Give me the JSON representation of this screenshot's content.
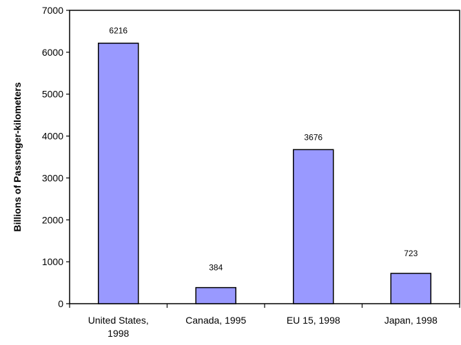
{
  "chart_data": {
    "type": "bar",
    "categories": [
      [
        "United States,",
        "1998"
      ],
      [
        "Canada, 1995"
      ],
      [
        "EU 15, 1998"
      ],
      [
        "Japan, 1998"
      ]
    ],
    "values": [
      6216,
      384,
      3676,
      723
    ],
    "ylabel": "Billions of Passenger-kilometers",
    "ylim": [
      0,
      7000
    ],
    "yticks": [
      0,
      1000,
      2000,
      3000,
      4000,
      5000,
      6000,
      7000
    ],
    "bar_color": "#9999ff",
    "bar_edge_color": "#000000",
    "grid": false,
    "legend": "none"
  }
}
